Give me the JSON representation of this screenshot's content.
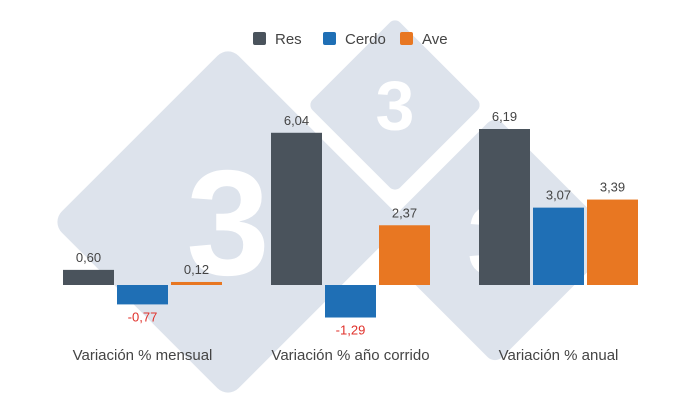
{
  "chart_data": {
    "type": "bar",
    "categories": [
      "Variación % mensual",
      "Variación % año corrido",
      "Variación % anual"
    ],
    "series": [
      {
        "name": "Res",
        "color": "#4a535c",
        "values": [
          0.6,
          6.04,
          6.19
        ],
        "labels": [
          "0,60",
          "6,04",
          "6,19"
        ]
      },
      {
        "name": "Cerdo",
        "color": "#1f6fb5",
        "values": [
          -0.77,
          -1.29,
          3.07
        ],
        "labels": [
          "-0,77",
          "-1,29",
          "3,07"
        ]
      },
      {
        "name": "Ave",
        "color": "#e87722",
        "values": [
          0.12,
          2.37,
          3.39
        ],
        "labels": [
          "0,12",
          "2,37",
          "3,39"
        ]
      }
    ],
    "negative_label_color": "#e0302a",
    "positive_label_color": "#444444",
    "legend_position": "top-center",
    "grid": false,
    "ylim": [
      -1.29,
      6.19
    ]
  },
  "watermark": {
    "glyph": "3",
    "color": "#dde3ec"
  }
}
